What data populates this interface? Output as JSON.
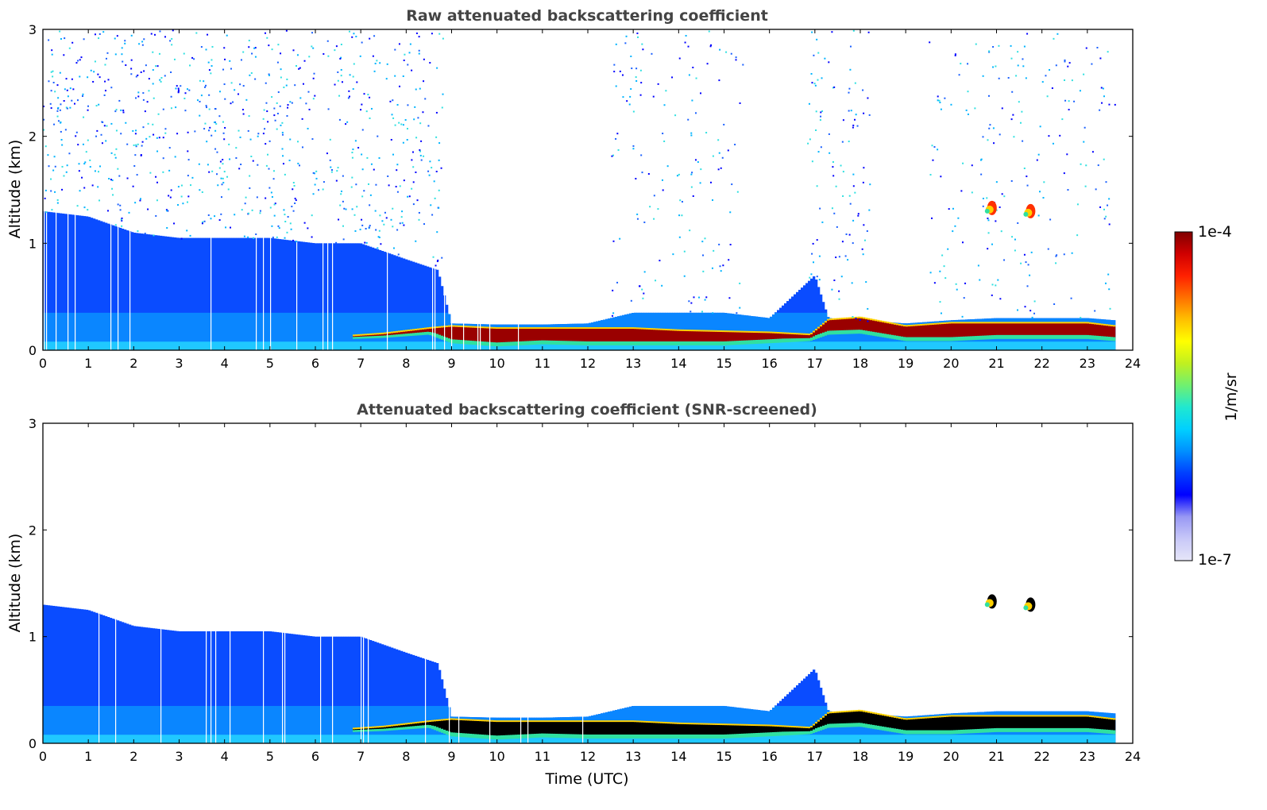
{
  "chart_data": [
    {
      "type": "heatmap",
      "title": "Raw attenuated backscattering coefficient",
      "xlabel": "",
      "ylabel": "Altitude (km)",
      "xlim": [
        0,
        24
      ],
      "ylim": [
        0,
        3
      ],
      "xticks": [
        "0",
        "1",
        "2",
        "3",
        "4",
        "5",
        "6",
        "7",
        "8",
        "9",
        "10",
        "11",
        "12",
        "13",
        "14",
        "15",
        "16",
        "17",
        "18",
        "19",
        "20",
        "21",
        "22",
        "23",
        "24"
      ],
      "yticks": [
        "0",
        "1",
        "2",
        "3"
      ],
      "features": [
        {
          "kind": "noise_region",
          "x": [
            0,
            8.8
          ],
          "y_max": 3.0,
          "level": 0.35
        },
        {
          "kind": "noise_region",
          "x": [
            12.5,
            15.5
          ],
          "y_max": 3.0,
          "level": 0.2
        },
        {
          "kind": "noise_region",
          "x": [
            16.8,
            18.2
          ],
          "y_max": 3.0,
          "level": 0.3
        },
        {
          "kind": "noise_region",
          "x": [
            19.5,
            23.6
          ],
          "y_max": 3.0,
          "level": 0.2
        },
        {
          "kind": "boundary_layer",
          "x": [
            0,
            1,
            2,
            3,
            4,
            5,
            6,
            7,
            8,
            8.7,
            9,
            10,
            11,
            12,
            13,
            14,
            15,
            16,
            17,
            17.3,
            18,
            19,
            20,
            21,
            22,
            23,
            23.6
          ],
          "top": [
            1.3,
            1.25,
            1.1,
            1.05,
            1.05,
            1.05,
            1.0,
            1.0,
            0.85,
            0.75,
            0.25,
            0.24,
            0.24,
            0.25,
            0.35,
            0.35,
            0.35,
            0.3,
            0.7,
            0.3,
            0.28,
            0.25,
            0.28,
            0.3,
            0.3,
            0.3,
            0.28
          ]
        },
        {
          "kind": "cloud_layer",
          "x": [
            6.8,
            7.5,
            8.5,
            9.0,
            10,
            11,
            12,
            13,
            14,
            15,
            16,
            16.9,
            17.3,
            18,
            19,
            20,
            21,
            22,
            23,
            23.6
          ],
          "base": [
            0.12,
            0.13,
            0.16,
            0.08,
            0.05,
            0.07,
            0.06,
            0.06,
            0.06,
            0.06,
            0.08,
            0.1,
            0.16,
            0.17,
            0.1,
            0.1,
            0.12,
            0.12,
            0.12,
            0.1
          ],
          "top": [
            0.13,
            0.15,
            0.2,
            0.22,
            0.2,
            0.2,
            0.2,
            0.2,
            0.18,
            0.17,
            0.16,
            0.14,
            0.28,
            0.3,
            0.22,
            0.25,
            0.25,
            0.25,
            0.25,
            0.22
          ]
        },
        {
          "kind": "elevated_cloud",
          "x": 20.9,
          "y": 1.33
        },
        {
          "kind": "elevated_cloud",
          "x": 21.75,
          "y": 1.3
        }
      ]
    },
    {
      "type": "heatmap",
      "title": "Attenuated backscattering coefficient (SNR-screened)",
      "xlabel": "Time (UTC)",
      "ylabel": "Altitude (km)",
      "xlim": [
        0,
        24
      ],
      "ylim": [
        0,
        3
      ],
      "xticks": [
        "0",
        "1",
        "2",
        "3",
        "4",
        "5",
        "6",
        "7",
        "8",
        "9",
        "10",
        "11",
        "12",
        "13",
        "14",
        "15",
        "16",
        "17",
        "18",
        "19",
        "20",
        "21",
        "22",
        "23",
        "24"
      ],
      "yticks": [
        "0",
        "1",
        "2",
        "3"
      ],
      "saturated_color": "#000000"
    }
  ],
  "colorbar": {
    "label": "1/m/sr",
    "min_label": "1e-7",
    "max_label": "1e-4",
    "colormap": [
      "#e6e6f8",
      "#c8c8f8",
      "#9898f4",
      "#0000ff",
      "#0040ff",
      "#0090ff",
      "#00d0ff",
      "#20e8d0",
      "#70f070",
      "#c0f020",
      "#ffff00",
      "#ffc000",
      "#ff7000",
      "#ff2000",
      "#d00000",
      "#800000"
    ]
  }
}
